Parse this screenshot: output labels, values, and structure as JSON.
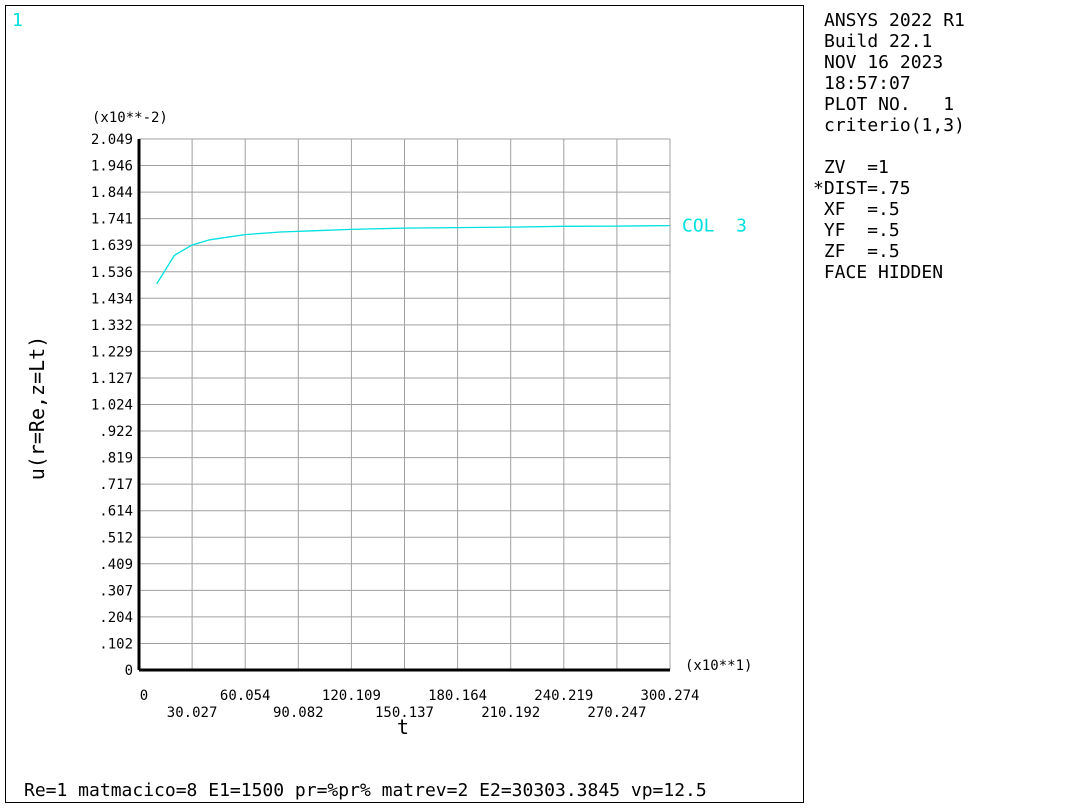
{
  "window_number": "1",
  "info_panel": {
    "lines": [
      "ANSYS 2022 R1",
      "Build 22.1",
      "NOV 16 2023",
      "18:57:07",
      "PLOT NO.   1",
      "criterio(1,3)"
    ],
    "view_lines": [
      " ZV  =1",
      "*DIST=.75",
      " XF  =.5",
      " YF  =.5",
      " ZF  =.5",
      " FACE HIDDEN"
    ]
  },
  "caption": "Re=1 matmacico=8 E1=1500 pr=%pr% matrev=2 E2=30303.3845 vp=12.5",
  "colors": {
    "curve": "#00e0e0",
    "grid": "#a0a0a0",
    "axis": "#000000",
    "window_label": "#00e0e0"
  },
  "chart_data": {
    "type": "line",
    "xlabel": "t",
    "ylabel": "u(r=Re,z=Lt)",
    "x_multiplier": "(x10**1)",
    "y_multiplier": "(x10**-2)",
    "xlim": [
      0,
      300.274
    ],
    "ylim": [
      0,
      2.049
    ],
    "x_ticks_upper": [
      "0",
      "60.054",
      "120.109",
      "180.164",
      "240.219",
      "300.274"
    ],
    "x_ticks_lower": [
      "30.027",
      "90.082",
      "150.137",
      "210.192",
      "270.247"
    ],
    "y_ticks": [
      "0",
      ".102",
      ".204",
      ".307",
      ".409",
      ".512",
      ".614",
      ".717",
      ".819",
      ".922",
      "1.024",
      "1.127",
      "1.229",
      "1.332",
      "1.434",
      "1.536",
      "1.639",
      "1.741",
      "1.844",
      "1.946",
      "2.049"
    ],
    "grid": true,
    "series": [
      {
        "name": "COL  3",
        "x": [
          10,
          20,
          30,
          40,
          50,
          60,
          80,
          100,
          120,
          150,
          180,
          210,
          240,
          270,
          300
        ],
        "y": [
          1.49,
          1.6,
          1.64,
          1.66,
          1.67,
          1.68,
          1.69,
          1.695,
          1.7,
          1.705,
          1.707,
          1.709,
          1.712,
          1.713,
          1.715
        ]
      }
    ]
  }
}
